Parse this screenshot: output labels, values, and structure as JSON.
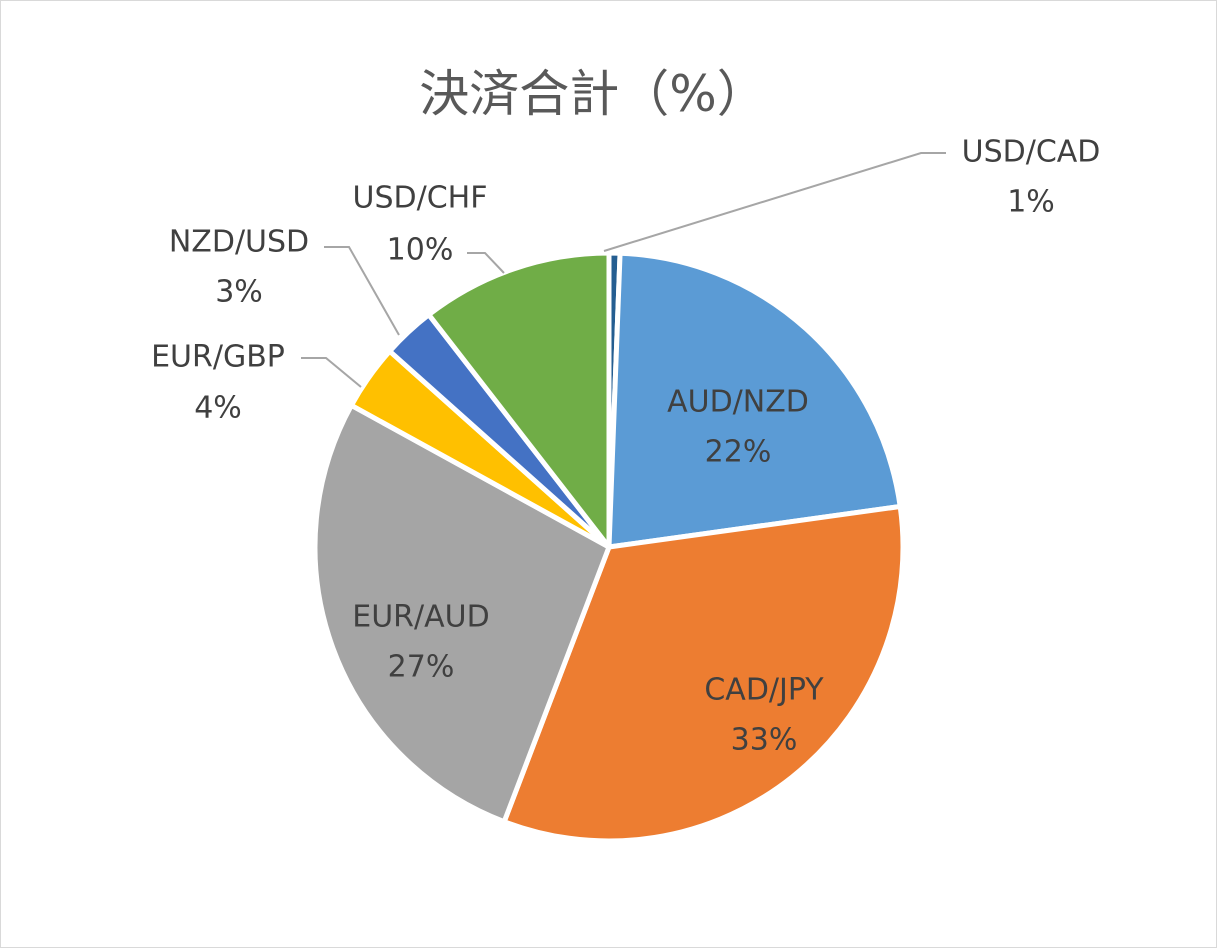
{
  "chart_data": {
    "type": "pie",
    "title": "決済合計（%）",
    "slices": [
      {
        "name": "USD/CAD",
        "label": "1%",
        "value": 0.6,
        "color": "#255e91"
      },
      {
        "name": "AUD/NZD",
        "label": "22%",
        "value": 22.2,
        "color": "#5b9bd5"
      },
      {
        "name": "CAD/JPY",
        "label": "33%",
        "value": 33.0,
        "color": "#ed7d31"
      },
      {
        "name": "EUR/AUD",
        "label": "27%",
        "value": 27.2,
        "color": "#a5a5a5"
      },
      {
        "name": "EUR/GBP",
        "label": "4%",
        "value": 3.6,
        "color": "#ffc000"
      },
      {
        "name": "NZD/USD",
        "label": "3%",
        "value": 2.9,
        "color": "#4472c4"
      },
      {
        "name": "USD/CHF",
        "label": "10%",
        "value": 10.5,
        "color": "#70ad47"
      }
    ],
    "legend": "none",
    "data_labels": "category-and-percentage"
  }
}
